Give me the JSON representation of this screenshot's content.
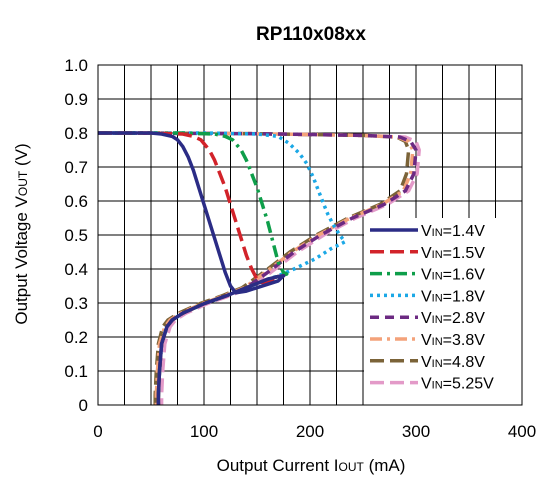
{
  "chart_data": {
    "type": "line",
    "title": "RP110x08xx",
    "xlabel": "Output Current IOUT (mA)",
    "xlabel_parts": {
      "main": "Output Current I",
      "sub": "OUT",
      "unit": " (mA)"
    },
    "ylabel": "Output Voltage VOUT (V)",
    "ylabel_parts": {
      "main": "Output Voltage V",
      "sub": "OUT",
      "unit": " (V)"
    },
    "xlim": [
      0,
      400
    ],
    "ylim": [
      0,
      1.0
    ],
    "xticks": [
      "0",
      "100",
      "200",
      "300",
      "400"
    ],
    "yticks": [
      "0",
      "0.1",
      "0.2",
      "0.3",
      "0.4",
      "0.5",
      "0.6",
      "0.7",
      "0.8",
      "0.9",
      "1.0"
    ],
    "grid": true,
    "legend_position": "right",
    "series": [
      {
        "name": "VIN=1.4V",
        "label_main": "V",
        "label_sub": "IN",
        "label_val": "=1.4V",
        "color": "#2B2C85",
        "dash": "solid",
        "x": [
          0,
          50,
          60,
          70,
          75,
          80,
          85,
          90,
          95,
          100,
          105,
          110,
          115,
          120,
          125,
          130,
          140,
          150,
          160,
          170,
          175,
          170,
          160,
          140,
          120,
          100,
          80,
          70,
          65,
          60,
          58,
          57,
          57
        ],
        "y": [
          0.8,
          0.8,
          0.797,
          0.79,
          0.78,
          0.76,
          0.73,
          0.69,
          0.64,
          0.59,
          0.54,
          0.49,
          0.44,
          0.39,
          0.35,
          0.33,
          0.335,
          0.345,
          0.355,
          0.365,
          0.38,
          0.378,
          0.37,
          0.345,
          0.32,
          0.298,
          0.27,
          0.25,
          0.23,
          0.18,
          0.1,
          0.03,
          0.0
        ]
      },
      {
        "name": "VIN=1.5V",
        "label_main": "V",
        "label_sub": "IN",
        "label_val": "=1.5V",
        "color": "#D2232A",
        "dash": "long",
        "x": [
          0,
          50,
          80,
          90,
          97,
          105,
          110,
          115,
          120,
          125,
          130,
          135,
          140,
          145,
          150,
          155,
          160,
          170,
          175,
          170,
          160,
          140,
          120,
          100,
          80,
          70,
          65,
          60,
          58,
          57,
          57
        ],
        "y": [
          0.8,
          0.8,
          0.797,
          0.79,
          0.78,
          0.75,
          0.72,
          0.68,
          0.64,
          0.59,
          0.54,
          0.49,
          0.44,
          0.4,
          0.37,
          0.36,
          0.36,
          0.368,
          0.38,
          0.378,
          0.37,
          0.345,
          0.32,
          0.298,
          0.27,
          0.25,
          0.23,
          0.18,
          0.1,
          0.03,
          0.0
        ]
      },
      {
        "name": "VIN=1.6V",
        "label_main": "V",
        "label_sub": "IN",
        "label_val": "=1.6V",
        "color": "#0E9E4A",
        "dash": "dashdot",
        "x": [
          0,
          80,
          110,
          120,
          127,
          135,
          140,
          145,
          150,
          155,
          160,
          165,
          170,
          175,
          178,
          170,
          160,
          140,
          120,
          100,
          80,
          70,
          65,
          60,
          58,
          57,
          57
        ],
        "y": [
          0.8,
          0.8,
          0.797,
          0.79,
          0.78,
          0.75,
          0.72,
          0.68,
          0.64,
          0.59,
          0.54,
          0.48,
          0.42,
          0.39,
          0.385,
          0.378,
          0.37,
          0.345,
          0.32,
          0.298,
          0.27,
          0.25,
          0.23,
          0.18,
          0.1,
          0.03,
          0.0
        ]
      },
      {
        "name": "VIN=1.8V",
        "label_main": "V",
        "label_sub": "IN",
        "label_val": "=1.8V",
        "color": "#1BA8E6",
        "dash": "dot",
        "x": [
          0,
          100,
          150,
          170,
          180,
          190,
          197,
          203,
          208,
          213,
          217,
          222,
          228,
          233,
          220,
          205,
          185,
          170,
          160,
          140,
          120,
          100,
          80,
          70,
          65,
          60,
          58,
          57,
          57
        ],
        "y": [
          0.8,
          0.8,
          0.797,
          0.79,
          0.77,
          0.74,
          0.71,
          0.67,
          0.63,
          0.59,
          0.56,
          0.53,
          0.5,
          0.48,
          0.46,
          0.43,
          0.4,
          0.38,
          0.37,
          0.345,
          0.32,
          0.298,
          0.27,
          0.25,
          0.23,
          0.18,
          0.1,
          0.03,
          0.0
        ]
      },
      {
        "name": "VIN=2.8V",
        "label_main": "V",
        "label_sub": "IN",
        "label_val": "=2.8V",
        "color": "#6C2A82",
        "dash": "dash",
        "x": [
          0,
          150,
          250,
          285,
          295,
          300,
          298,
          290,
          270,
          240,
          210,
          185,
          160,
          140,
          120,
          100,
          80,
          70,
          65,
          60,
          58,
          57,
          57
        ],
        "y": [
          0.8,
          0.798,
          0.793,
          0.788,
          0.775,
          0.75,
          0.68,
          0.63,
          0.59,
          0.55,
          0.5,
          0.45,
          0.39,
          0.345,
          0.32,
          0.298,
          0.27,
          0.25,
          0.23,
          0.18,
          0.1,
          0.03,
          0.0
        ]
      },
      {
        "name": "VIN=3.8V",
        "label_main": "V",
        "label_sub": "IN",
        "label_val": "=3.8V",
        "color": "#F4A27A",
        "dash": "dashdot",
        "x": [
          0,
          150,
          250,
          283,
          293,
          297,
          295,
          288,
          268,
          238,
          208,
          183,
          158,
          138,
          118,
          98,
          78,
          68,
          63,
          58,
          56,
          55,
          55
        ],
        "y": [
          0.8,
          0.798,
          0.793,
          0.788,
          0.775,
          0.75,
          0.68,
          0.63,
          0.59,
          0.55,
          0.5,
          0.45,
          0.39,
          0.345,
          0.32,
          0.298,
          0.27,
          0.25,
          0.23,
          0.18,
          0.1,
          0.03,
          0.0
        ]
      },
      {
        "name": "VIN=4.8V",
        "label_main": "V",
        "label_sub": "IN",
        "label_val": "=4.8V",
        "color": "#7B6338",
        "dash": "long",
        "x": [
          0,
          150,
          250,
          282,
          290,
          293,
          291,
          285,
          266,
          236,
          206,
          181,
          156,
          136,
          116,
          96,
          76,
          66,
          61,
          57,
          55,
          54,
          54
        ],
        "y": [
          0.8,
          0.798,
          0.793,
          0.788,
          0.775,
          0.75,
          0.68,
          0.63,
          0.59,
          0.55,
          0.5,
          0.45,
          0.39,
          0.345,
          0.32,
          0.298,
          0.27,
          0.25,
          0.23,
          0.18,
          0.1,
          0.03,
          0.0
        ]
      },
      {
        "name": "VIN=5.25V",
        "label_main": "V",
        "label_sub": "IN",
        "label_val": "=5.25V",
        "color": "#E39AC8",
        "dash": "long",
        "x": [
          0,
          150,
          250,
          290,
          300,
          303,
          301,
          293,
          273,
          243,
          213,
          188,
          163,
          143,
          123,
          103,
          83,
          73,
          68,
          63,
          61,
          60,
          60
        ],
        "y": [
          0.8,
          0.798,
          0.793,
          0.788,
          0.775,
          0.75,
          0.68,
          0.63,
          0.59,
          0.55,
          0.5,
          0.45,
          0.39,
          0.345,
          0.32,
          0.298,
          0.27,
          0.25,
          0.23,
          0.18,
          0.1,
          0.03,
          0.0
        ]
      }
    ]
  }
}
